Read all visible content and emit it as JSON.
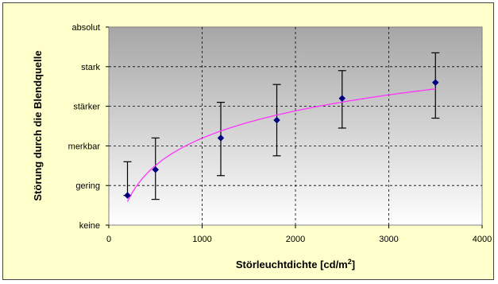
{
  "chart_data": {
    "type": "scatter",
    "title": "",
    "xlabel": "Störleuchtdichte [cd/m²]",
    "ylabel": "Störung durch die Blendquelle",
    "xlim": [
      0,
      4000
    ],
    "ylim": [
      0,
      5
    ],
    "x_ticks": [
      "0",
      "1000",
      "2000",
      "3000",
      "4000"
    ],
    "y_tick_labels": [
      "keine",
      "gering",
      "merkbar",
      "stärker",
      "stark",
      "absolut"
    ],
    "grid": true,
    "plot_background": "gradient grey to white",
    "points": [
      {
        "x": 200,
        "y": 0.75,
        "err_low": 0.75,
        "err_high": 1.6
      },
      {
        "x": 500,
        "y": 1.4,
        "err_low": 0.65,
        "err_high": 2.2
      },
      {
        "x": 1200,
        "y": 2.2,
        "err_low": 1.25,
        "err_high": 3.1
      },
      {
        "x": 1800,
        "y": 2.65,
        "err_low": 1.75,
        "err_high": 3.55
      },
      {
        "x": 2500,
        "y": 3.2,
        "err_low": 2.45,
        "err_high": 3.9
      },
      {
        "x": 3500,
        "y": 3.6,
        "err_low": 2.7,
        "err_high": 4.35
      }
    ],
    "trend_line": {
      "type": "logarithmic fit",
      "color": "#FF33FF"
    },
    "colors": {
      "marker": "#000080",
      "error_bar": "#000000",
      "trend": "#FF33FF",
      "frame_bg": "#FFFFCC"
    }
  }
}
